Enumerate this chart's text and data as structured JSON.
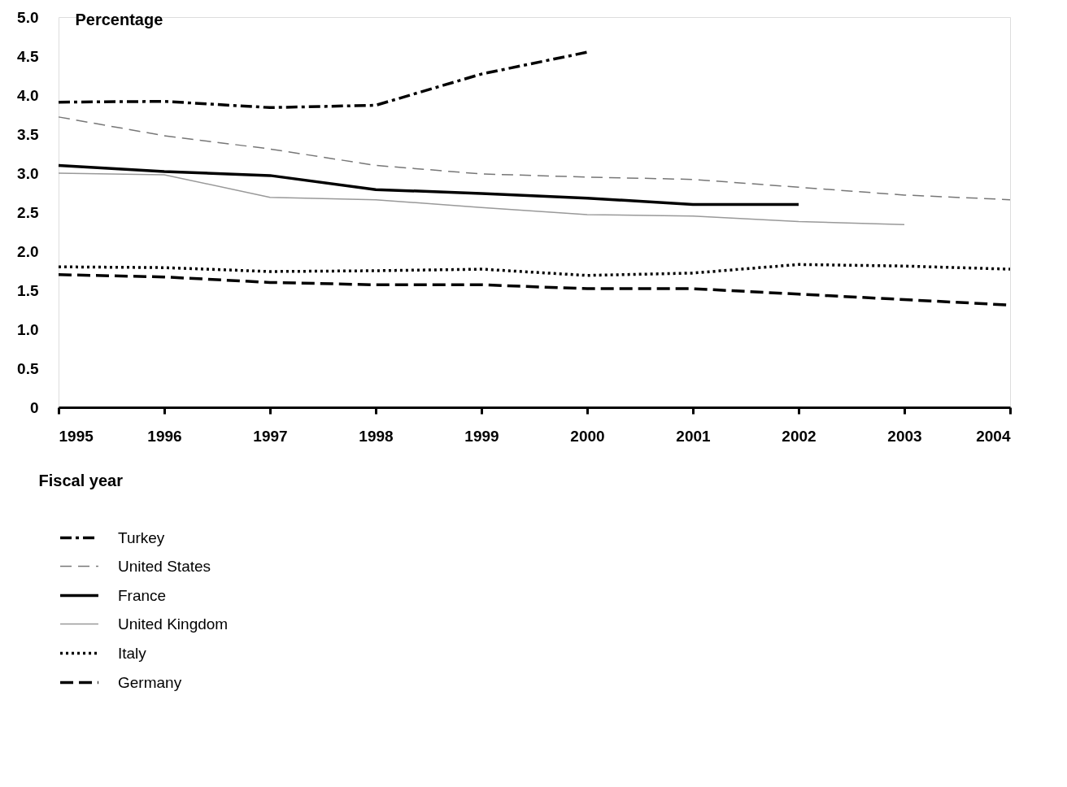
{
  "chart_data": {
    "type": "line",
    "ylabel": "Percentage",
    "xlabel": "Fiscal year",
    "x": [
      1995,
      1996,
      1997,
      1998,
      1999,
      2000,
      2001,
      2002,
      2003,
      2004
    ],
    "xlim": [
      1995,
      2004
    ],
    "xticks": [
      1995,
      1996,
      1997,
      1998,
      1999,
      2000,
      2001,
      2002,
      2003,
      2004
    ],
    "ylim": [
      0,
      5
    ],
    "yticks": [
      0,
      0.5,
      {
        "value": 1,
        "label": "1.0"
      },
      1.5,
      {
        "value": 2,
        "label": "2.0"
      },
      2.5,
      {
        "value": 3,
        "label": "3.0"
      },
      3.5,
      {
        "value": 4,
        "label": "4.0"
      },
      4.5,
      {
        "value": 5,
        "label": "5.0"
      }
    ],
    "grid": false,
    "legend": "bottom",
    "marker": "none",
    "series": [
      {
        "name": "Turkey",
        "color": "#000000",
        "line_style": "dashdot",
        "values": [
          3.91,
          3.92,
          3.84,
          3.87,
          4.27,
          4.55,
          null,
          null,
          null,
          null
        ]
      },
      {
        "name": "United States",
        "color": "#777777",
        "line_style": "dashed",
        "values": [
          3.72,
          3.48,
          3.31,
          3.1,
          2.99,
          2.95,
          2.92,
          2.82,
          2.72,
          2.66
        ]
      },
      {
        "name": "France",
        "color": "#000000",
        "line_style": "solid",
        "values": [
          3.1,
          3.02,
          2.97,
          2.79,
          2.74,
          2.68,
          2.6,
          2.6,
          null,
          null
        ]
      },
      {
        "name": "United Kingdom",
        "color": "#999999",
        "line_style": "solid",
        "values": [
          3.0,
          2.98,
          2.69,
          2.66,
          2.56,
          2.47,
          2.45,
          2.38,
          2.34,
          null
        ]
      },
      {
        "name": "Italy",
        "color": "#000000",
        "line_style": "dotted",
        "values": [
          1.8,
          1.79,
          1.74,
          1.75,
          1.77,
          1.69,
          1.72,
          1.83,
          1.81,
          1.77
        ]
      },
      {
        "name": "Germany",
        "color": "#000000",
        "line_style": "dashed",
        "values": [
          1.7,
          1.67,
          1.6,
          1.57,
          1.57,
          1.52,
          1.52,
          1.45,
          1.38,
          1.31
        ]
      }
    ]
  }
}
